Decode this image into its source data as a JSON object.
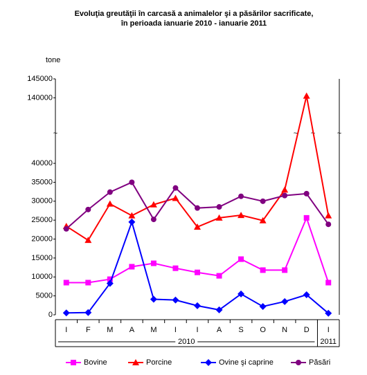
{
  "chart_data": {
    "type": "line",
    "title": [
      "Evoluţia greutăţii în carcasă a animalelor şi a păsărilor sacrificate,",
      "în perioada ianuarie 2010 - ianuarie 2011"
    ],
    "y_label": "tone",
    "categories": [
      "I",
      "F",
      "M",
      "A",
      "M",
      "I",
      "I",
      "A",
      "S",
      "O",
      "N",
      "D",
      "I"
    ],
    "year_groups": [
      {
        "label": "2010",
        "span": 12
      },
      {
        "label": "2011",
        "span": 1
      }
    ],
    "ylim": [
      0,
      145000
    ],
    "ybreak": [
      43000,
      133000
    ],
    "yticks": [
      0,
      5000,
      10000,
      15000,
      20000,
      25000,
      30000,
      35000,
      40000,
      140000,
      145000
    ],
    "series": [
      {
        "name": "Bovine",
        "color": "#ff00ff",
        "marker": "square",
        "values": [
          8500,
          8500,
          9400,
          12700,
          13600,
          12300,
          11200,
          10300,
          14700,
          11800,
          11800,
          25600,
          8500
        ]
      },
      {
        "name": "Porcine",
        "color": "#ff0000",
        "marker": "triangle",
        "values": [
          23400,
          19700,
          29300,
          26200,
          29100,
          30800,
          23200,
          25600,
          26300,
          24900,
          33000,
          140500,
          26200
        ]
      },
      {
        "name": "Ovine şi caprine",
        "color": "#0000ff",
        "marker": "diamond",
        "values": [
          500,
          600,
          8300,
          24500,
          4100,
          3900,
          2400,
          1300,
          5500,
          2200,
          3500,
          5300,
          400
        ]
      },
      {
        "name": "Păsări",
        "color": "#800080",
        "marker": "circle",
        "values": [
          22700,
          27800,
          32400,
          35000,
          25200,
          33500,
          28200,
          28500,
          31300,
          30000,
          31500,
          32000,
          23900
        ]
      }
    ]
  }
}
